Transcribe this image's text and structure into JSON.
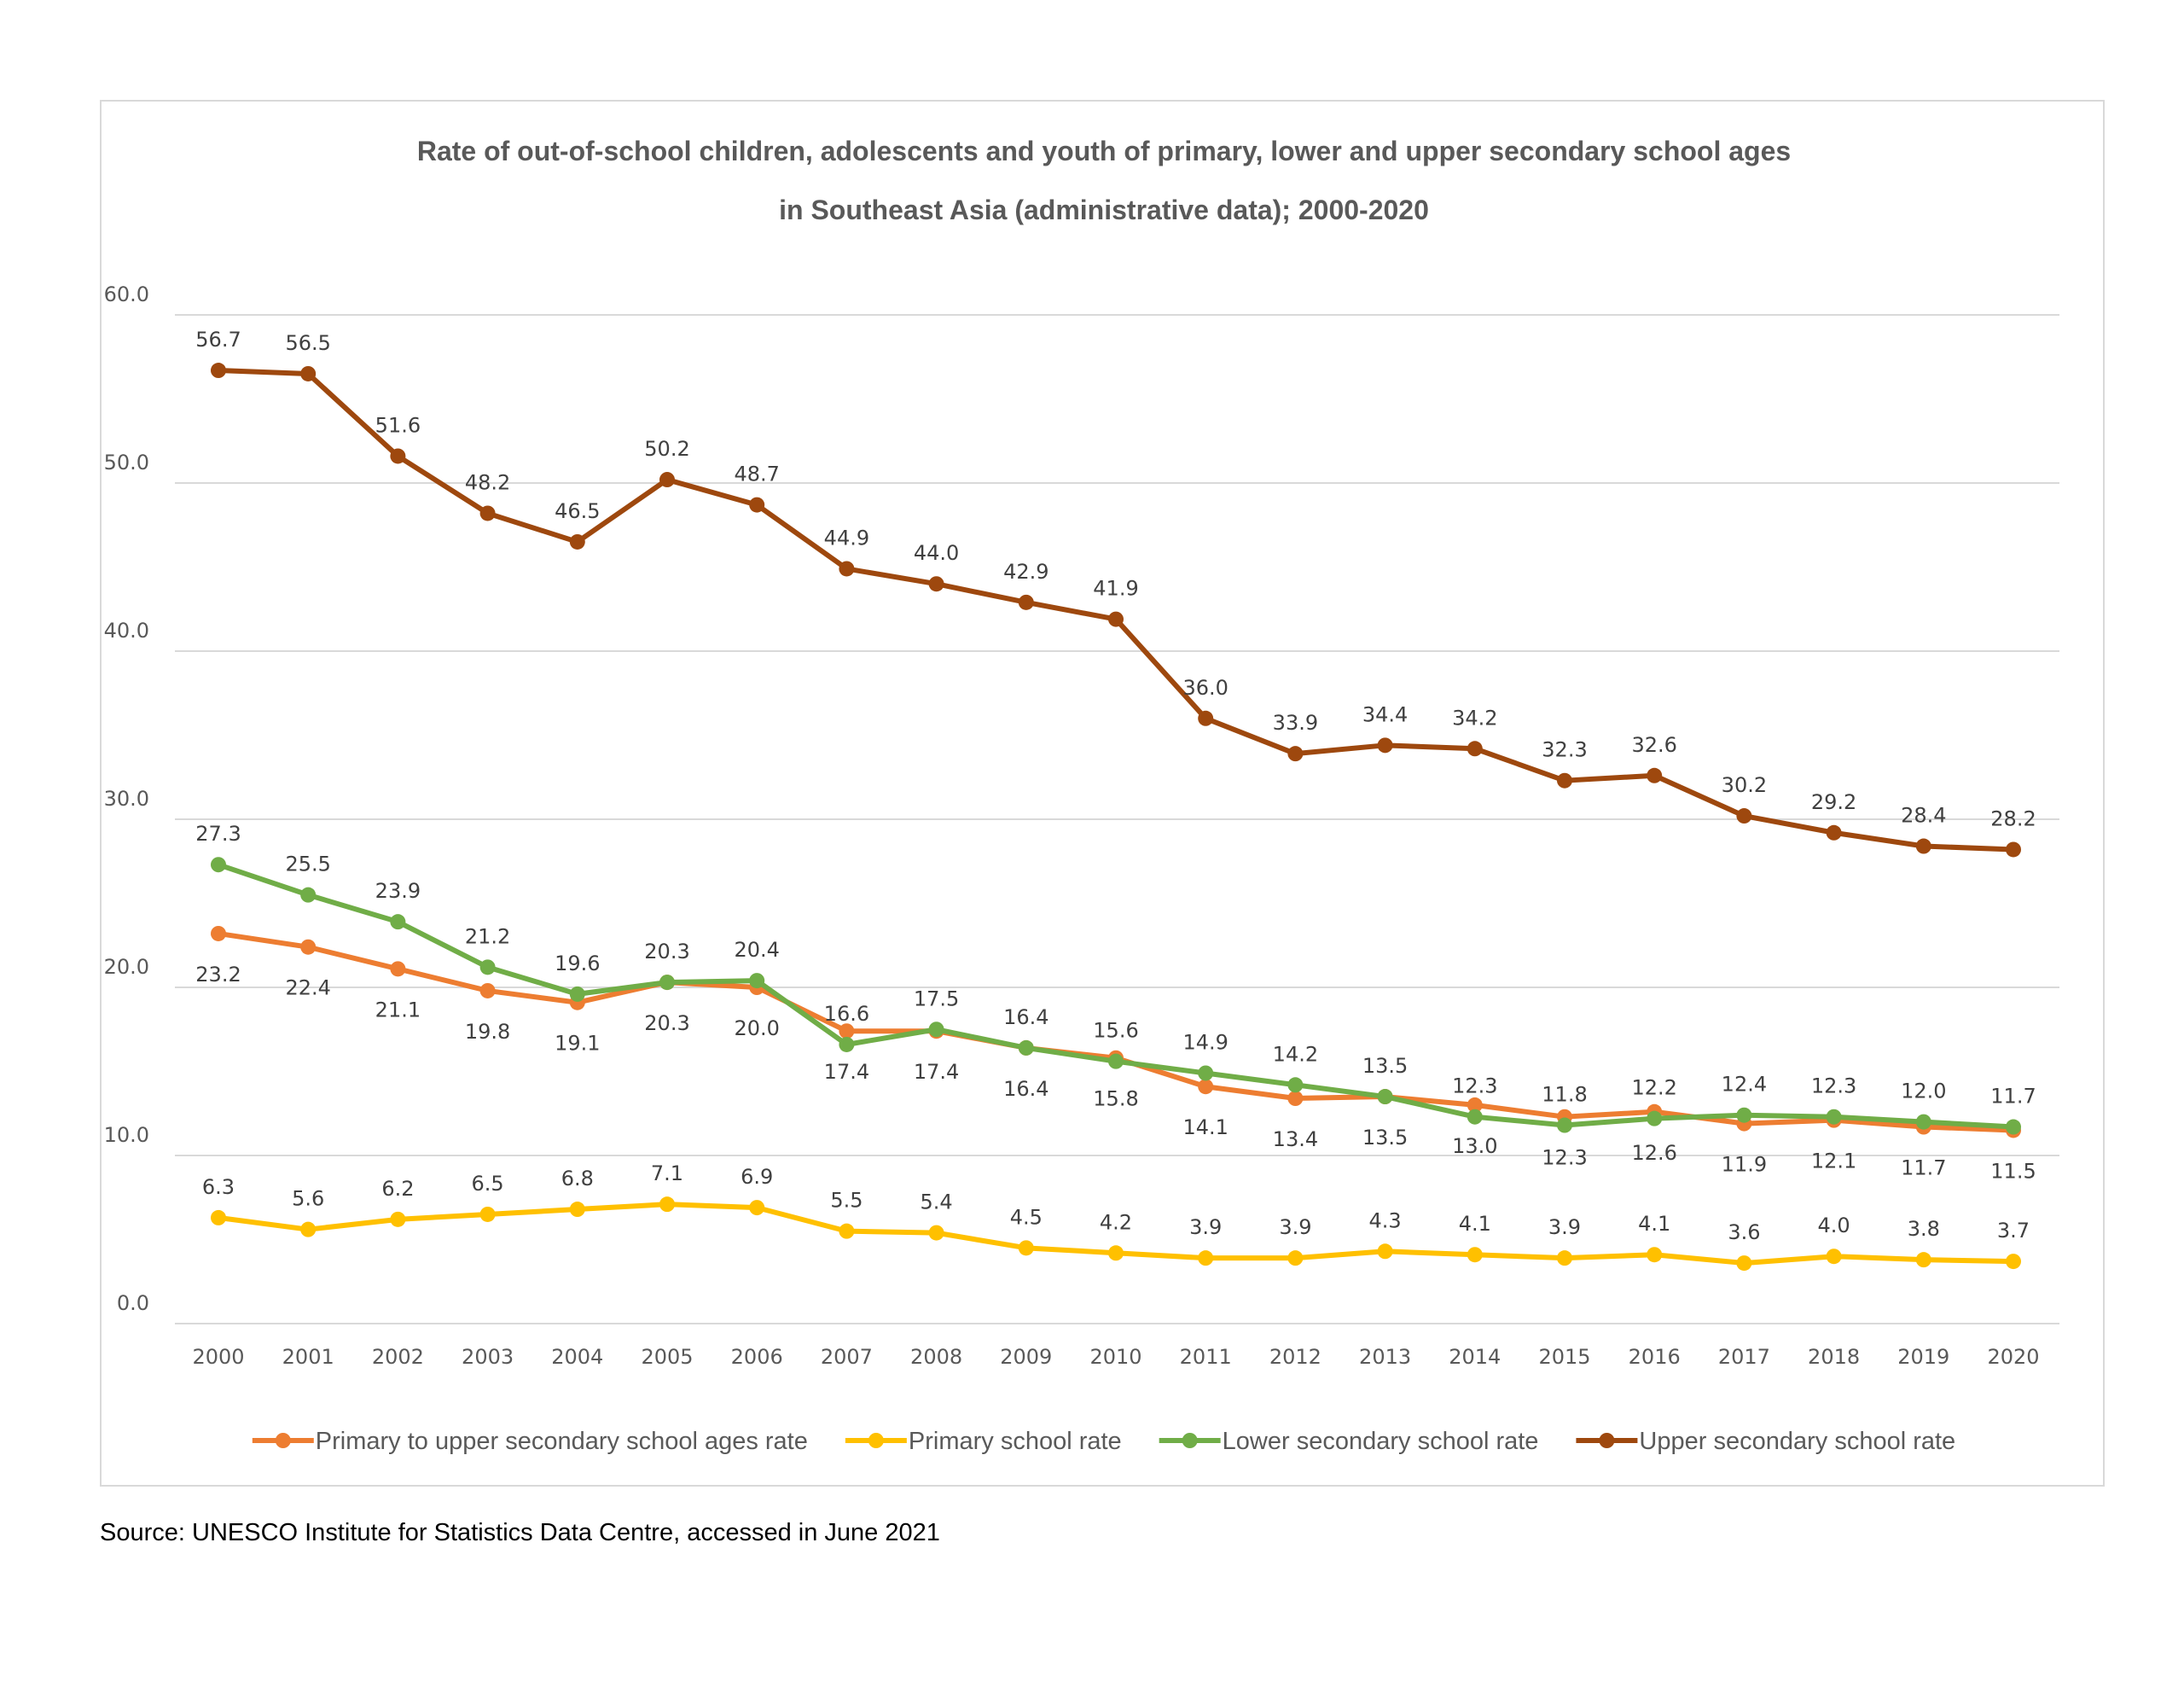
{
  "chart_data": {
    "type": "line",
    "title_lines": [
      "Rate of out-of-school children, adolescents and youth of primary, lower and upper secondary school ages",
      "in Southeast Asia (administrative data); 2000-2020"
    ],
    "xlabel": "",
    "ylabel": "",
    "ylim": [
      0,
      60
    ],
    "yticks": [
      "0.0",
      "10.0",
      "20.0",
      "30.0",
      "40.0",
      "50.0",
      "60.0"
    ],
    "grid": true,
    "legend_position": "bottom",
    "categories": [
      "2000",
      "2001",
      "2002",
      "2003",
      "2004",
      "2005",
      "2006",
      "2007",
      "2008",
      "2009",
      "2010",
      "2011",
      "2012",
      "2013",
      "2014",
      "2015",
      "2016",
      "2017",
      "2018",
      "2019",
      "2020"
    ],
    "series": [
      {
        "name": "Primary to upper secondary school ages rate",
        "color": "#ED7D31",
        "label_position": "below",
        "values": [
          23.2,
          22.4,
          21.1,
          19.8,
          19.1,
          20.3,
          20.0,
          17.4,
          17.4,
          16.4,
          15.8,
          14.1,
          13.4,
          13.5,
          13.0,
          12.3,
          12.6,
          11.9,
          12.1,
          11.7,
          11.5
        ]
      },
      {
        "name": "Primary school rate",
        "color": "#FFC000",
        "label_position": "above",
        "values": [
          6.3,
          5.6,
          6.2,
          6.5,
          6.8,
          7.1,
          6.9,
          5.5,
          5.4,
          4.5,
          4.2,
          3.9,
          3.9,
          4.3,
          4.1,
          3.9,
          4.1,
          3.6,
          4.0,
          3.8,
          3.7
        ]
      },
      {
        "name": "Lower secondary school rate",
        "color": "#70AD47",
        "label_position": "above",
        "values": [
          27.3,
          25.5,
          23.9,
          21.2,
          19.6,
          20.3,
          20.4,
          16.6,
          17.5,
          16.4,
          15.6,
          14.9,
          14.2,
          13.5,
          12.3,
          11.8,
          12.2,
          12.4,
          12.3,
          12.0,
          11.7
        ]
      },
      {
        "name": "Upper secondary school rate",
        "color": "#9E480E",
        "label_position": "above",
        "values": [
          56.7,
          56.5,
          51.6,
          48.2,
          46.5,
          50.2,
          48.7,
          44.9,
          44.0,
          42.9,
          41.9,
          36.0,
          33.9,
          34.4,
          34.2,
          32.3,
          32.6,
          30.2,
          29.2,
          28.4,
          28.2
        ]
      }
    ]
  },
  "colors": {
    "grid": "#D9D9D9",
    "axis_text": "#595959",
    "label_text": "#404040"
  },
  "source_note": "Source: UNESCO Institute for Statistics Data Centre, accessed in June 2021"
}
